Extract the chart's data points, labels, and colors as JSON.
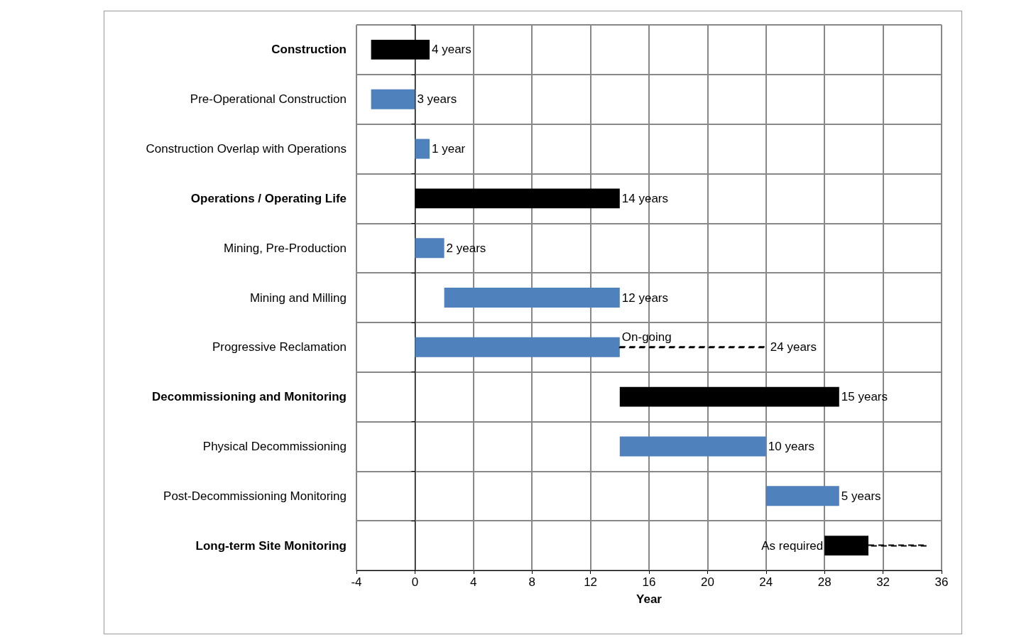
{
  "chart_data": {
    "type": "bar",
    "orientation": "horizontal",
    "xlabel": "Year",
    "categories": [
      "Construction",
      "Pre-Operational Construction",
      "Construction Overlap with Operations",
      "Operations / Operating Life",
      "Mining, Pre-Production",
      "Mining and Milling",
      "Progressive Reclamation",
      "Decommissioning and Monitoring",
      "Physical Decommissioning",
      "Post-Decommissioning Monitoring",
      "Long-term Site Monitoring"
    ],
    "series": [
      {
        "color": "#000000",
        "base": [
          -3,
          null,
          null,
          0,
          null,
          null,
          null,
          14,
          null,
          null,
          28
        ],
        "values": [
          4,
          null,
          null,
          14,
          null,
          null,
          null,
          15,
          null,
          null,
          3
        ],
        "value_labels": [
          "4 years",
          null,
          null,
          "14 years",
          null,
          null,
          null,
          "15 years",
          null,
          null,
          null
        ]
      },
      {
        "color": "#4f81bd",
        "base": [
          null,
          -3,
          0,
          null,
          0,
          2,
          0,
          null,
          14,
          24,
          null
        ],
        "values": [
          null,
          3,
          1,
          null,
          2,
          12,
          14,
          null,
          10,
          5,
          null
        ],
        "value_labels": [
          null,
          "3 years",
          "1 year",
          null,
          "2 years",
          "12 years",
          "On-going",
          null,
          "10 years",
          "5 years",
          null
        ]
      },
      {
        "line_style": "dashed",
        "color": "#000000",
        "base": [
          null,
          null,
          null,
          null,
          null,
          null,
          14,
          null,
          null,
          null,
          31
        ],
        "values": [
          null,
          null,
          null,
          null,
          null,
          null,
          10,
          null,
          null,
          null,
          4
        ],
        "value_labels": [
          null,
          null,
          null,
          null,
          null,
          null,
          "24 years",
          null,
          null,
          null,
          null
        ]
      }
    ],
    "annotations": [
      {
        "text": "As required",
        "x": 28,
        "y": "Long-term Site Monitoring"
      }
    ],
    "xlim": [
      -4,
      36
    ],
    "xticks": [
      -4,
      0,
      4,
      8,
      12,
      16,
      20,
      24,
      28,
      32,
      36
    ],
    "grid": true
  }
}
